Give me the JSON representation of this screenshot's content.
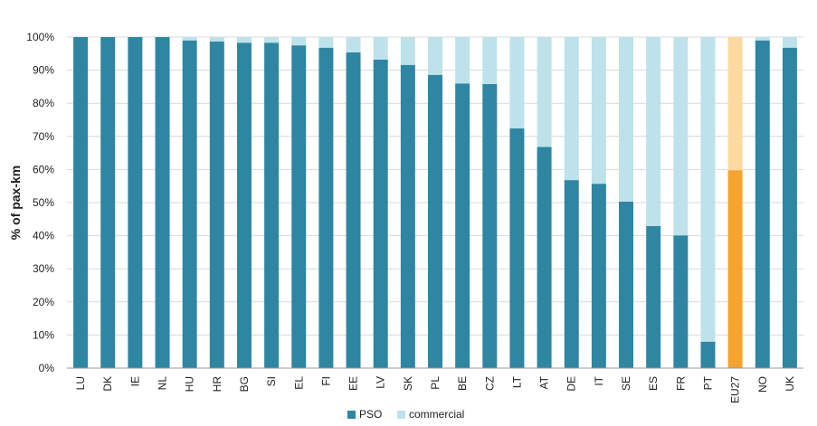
{
  "chart_data": {
    "type": "bar",
    "stacked": true,
    "title": "",
    "xlabel": "",
    "ylabel": "% of pax-km",
    "ylim": [
      0,
      100
    ],
    "yticks": [
      "0%",
      "10%",
      "20%",
      "30%",
      "40%",
      "50%",
      "60%",
      "70%",
      "80%",
      "90%",
      "100%"
    ],
    "grid": "horizontal",
    "legend_position": "bottom",
    "categories": [
      "LU",
      "DK",
      "IE",
      "NL",
      "HU",
      "HR",
      "BG",
      "SI",
      "EL",
      "FI",
      "EE",
      "LV",
      "SK",
      "PL",
      "BE",
      "CZ",
      "LT",
      "AT",
      "DE",
      "IT",
      "SE",
      "ES",
      "FR",
      "PT",
      "EU27",
      "NO",
      "UK"
    ],
    "series": [
      {
        "name": "PSO",
        "color": "#2e86a3",
        "values": [
          100,
          100,
          100,
          100,
          99,
          98.7,
          98.3,
          98.3,
          97.5,
          96.8,
          95.4,
          93.2,
          91.6,
          88.6,
          86,
          85.8,
          72.4,
          66.8,
          56.8,
          55.7,
          50.3,
          42.9,
          40.1,
          8,
          59.8,
          99,
          96.8
        ]
      },
      {
        "name": "commercial",
        "color": "#bde2ea",
        "values": [
          0,
          0,
          0,
          0,
          1,
          1.3,
          1.7,
          1.7,
          2.5,
          3.2,
          4.6,
          6.8,
          8.4,
          11.4,
          14,
          14.2,
          27.6,
          33.2,
          43.2,
          44.3,
          49.7,
          57.1,
          59.9,
          92,
          40.2,
          1,
          3.2
        ]
      }
    ],
    "highlight": {
      "category": "EU27",
      "colors": {
        "PSO": "#f5a42e",
        "commercial": "#fdd9a0"
      }
    }
  }
}
